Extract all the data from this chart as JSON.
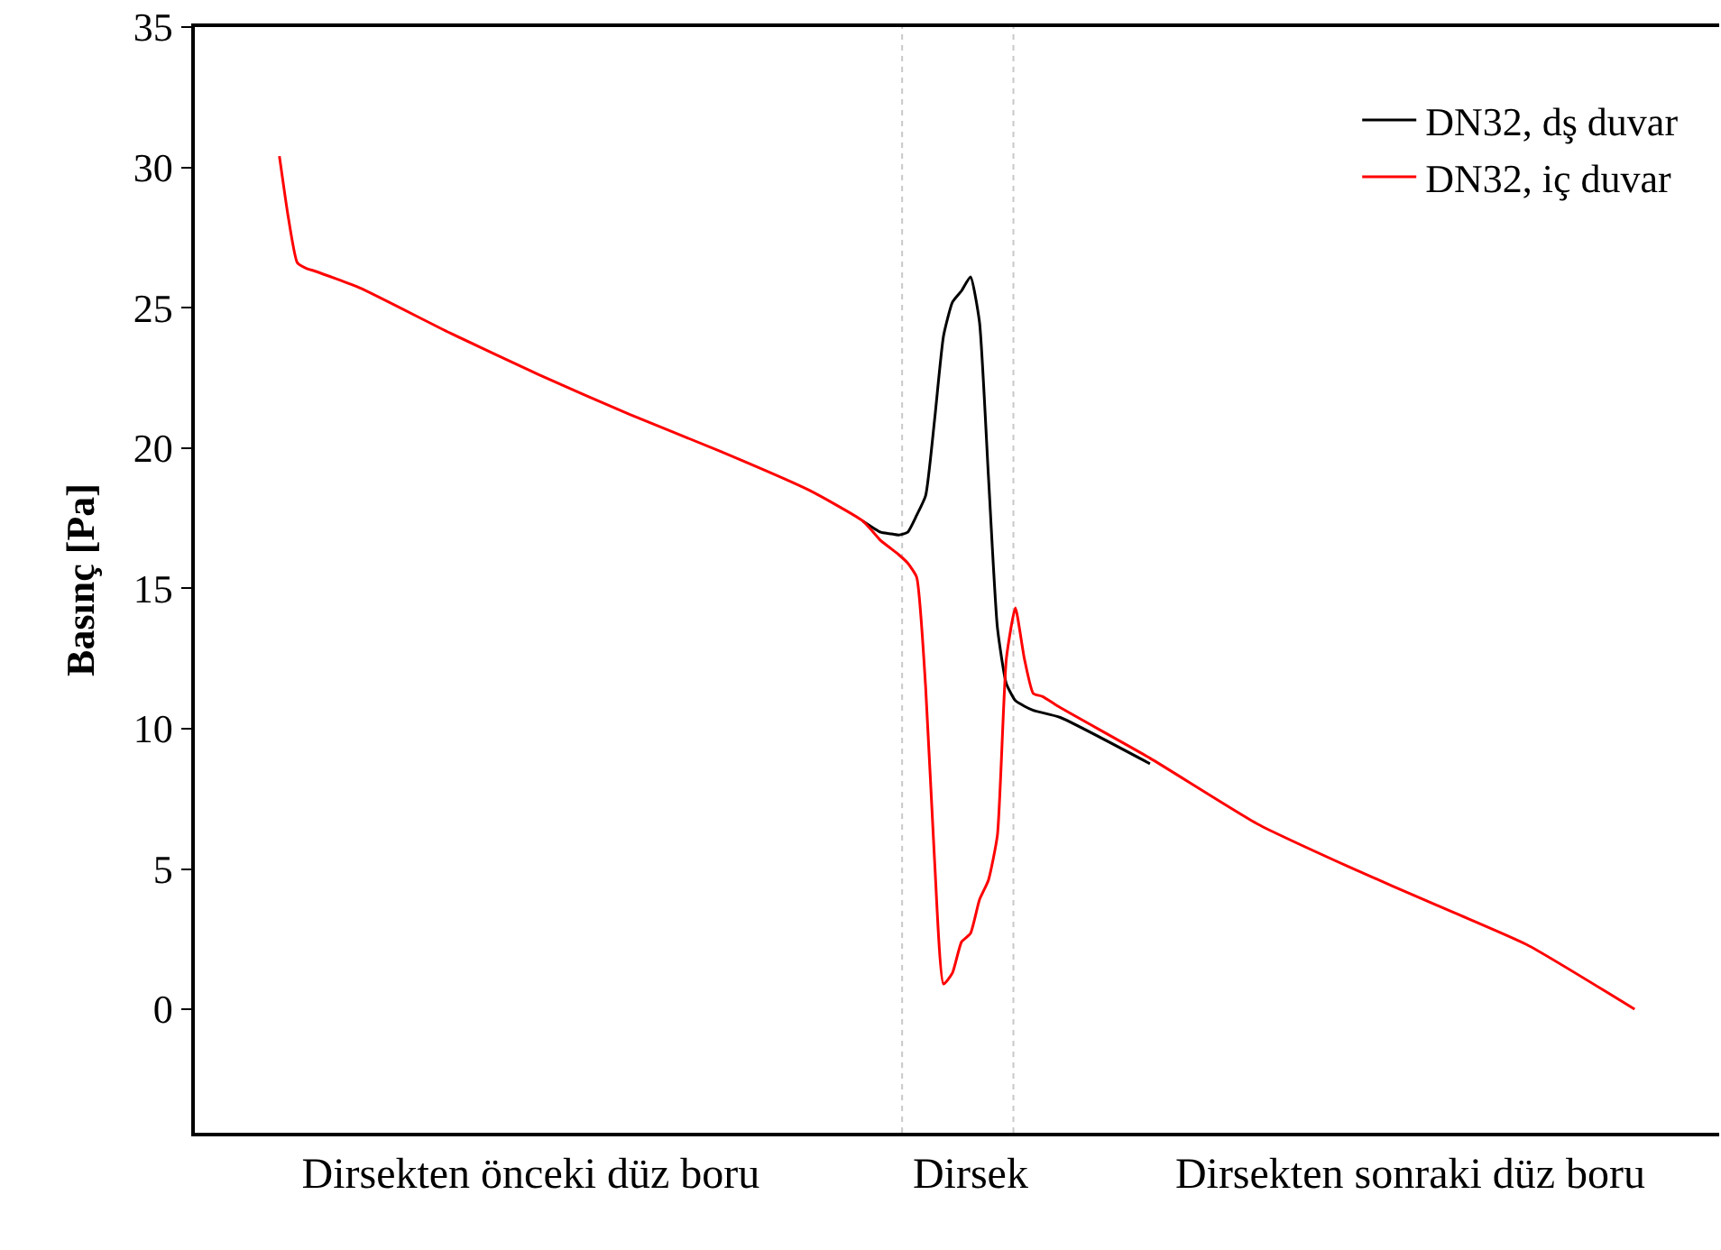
{
  "chart_data": {
    "type": "line",
    "ylabel": "Basınç [Pa]",
    "categories": [
      null,
      null,
      null,
      null,
      null,
      null,
      null,
      null,
      null,
      null,
      null,
      null,
      null,
      null,
      null,
      null,
      null,
      null,
      null,
      null,
      null,
      null,
      null,
      null,
      null,
      null,
      null,
      null,
      "Dirsekten önceki düz boru",
      null,
      null,
      null,
      null,
      null,
      null,
      null,
      null,
      null,
      null,
      null,
      null,
      null,
      null,
      null,
      null,
      null,
      null,
      null,
      null,
      null,
      null,
      null,
      null,
      null,
      null,
      null,
      null,
      null,
      null,
      null,
      null,
      null,
      null,
      null,
      null,
      null,
      null,
      null,
      null,
      null,
      null,
      null,
      null,
      null,
      null,
      null,
      null,
      "Dirsek",
      null,
      null,
      null,
      null,
      null,
      null,
      null,
      null,
      null,
      null,
      null,
      null,
      null,
      null,
      null,
      null,
      null,
      null,
      null,
      null,
      null,
      null,
      null,
      null,
      null,
      null,
      null,
      null,
      null,
      null,
      null,
      null,
      null,
      null,
      null,
      null,
      null,
      null,
      null,
      null,
      null,
      null,
      null,
      null,
      null,
      null,
      null,
      null,
      "Dirsekten sonraki düz boru",
      null,
      null,
      null,
      null,
      null,
      null,
      null,
      null,
      null,
      null,
      null,
      null,
      null,
      null,
      null,
      null,
      null,
      null,
      null,
      null,
      null,
      null,
      null,
      null,
      null
    ],
    "ylim": [
      -4.4,
      35
    ],
    "yticks": [
      0,
      5,
      10,
      15,
      20,
      25,
      30,
      35
    ],
    "series": [
      {
        "name": "DN32, dş duvar",
        "color": "#000000",
        "values": [
          null,
          null,
          null,
          null,
          null,
          null,
          null,
          null,
          null,
          null,
          null,
          null,
          null,
          null,
          null,
          null,
          null,
          null,
          null,
          null,
          null,
          null,
          null,
          null,
          null,
          null,
          null,
          null,
          null,
          null,
          null,
          null,
          null,
          null,
          null,
          null,
          null,
          null,
          null,
          null,
          null,
          null,
          null,
          null,
          null,
          null,
          null,
          null,
          null,
          null,
          null,
          null,
          null,
          null,
          null,
          null,
          null,
          null,
          null,
          null,
          null,
          null,
          null,
          null,
          null,
          17.4,
          null,
          17.0,
          16.95,
          16.9,
          17.0,
          17.6,
          18.3,
          21.0,
          24.0,
          25.2,
          25.6,
          26.1,
          24.5,
          19.0,
          13.6,
          11.6,
          11.0,
          10.8,
          10.65,
          null,
          null,
          10.4,
          null,
          null,
          null,
          null,
          null,
          null,
          null,
          null,
          null,
          8.75,
          null,
          null,
          null,
          null,
          null,
          null,
          null,
          null,
          null,
          null,
          null,
          null,
          null,
          null,
          null,
          null,
          null,
          null,
          null,
          null,
          null,
          null,
          null,
          null,
          null,
          null,
          null,
          null,
          null,
          null,
          null,
          null,
          null,
          null,
          null,
          null,
          null,
          null,
          null,
          null,
          null,
          null,
          null,
          null,
          null,
          null,
          null,
          null,
          null,
          null,
          null,
          null,
          null,
          null
        ]
      },
      {
        "name": "DN32, iç duvar",
        "color": "#ff0000",
        "values": [
          30.4,
          28.2,
          26.6,
          26.4,
          26.3,
          null,
          null,
          null,
          null,
          25.7,
          null,
          null,
          null,
          null,
          null,
          null,
          null,
          null,
          null,
          24.1,
          null,
          null,
          null,
          null,
          null,
          null,
          null,
          null,
          null,
          22.6,
          null,
          null,
          null,
          null,
          null,
          null,
          null,
          null,
          null,
          21.2,
          null,
          null,
          null,
          null,
          null,
          null,
          null,
          null,
          null,
          19.9,
          null,
          null,
          null,
          null,
          null,
          null,
          null,
          null,
          null,
          18.5,
          null,
          null,
          null,
          null,
          null,
          17.4,
          null,
          16.7,
          16.45,
          16.2,
          15.9,
          15.4,
          11.5,
          5.3,
          0.9,
          1.3,
          2.4,
          2.7,
          3.9,
          4.6,
          6.2,
          12.5,
          14.3,
          12.5,
          11.25,
          11.15,
          null,
          10.75,
          null,
          null,
          null,
          null,
          null,
          null,
          null,
          null,
          null,
          8.95,
          null,
          null,
          null,
          null,
          null,
          null,
          null,
          null,
          null,
          null,
          null,
          6.6,
          null,
          null,
          null,
          null,
          null,
          null,
          null,
          null,
          null,
          5.1,
          null,
          null,
          null,
          null,
          null,
          null,
          null,
          null,
          null,
          3.7,
          null,
          null,
          null,
          null,
          null,
          null,
          null,
          null,
          null,
          2.3,
          null,
          null,
          null,
          null,
          null,
          null,
          null,
          null,
          null,
          null,
          null,
          0
        ]
      }
    ],
    "legend": "top right",
    "grid": false,
    "marker": "none",
    "line_style": "solid"
  }
}
